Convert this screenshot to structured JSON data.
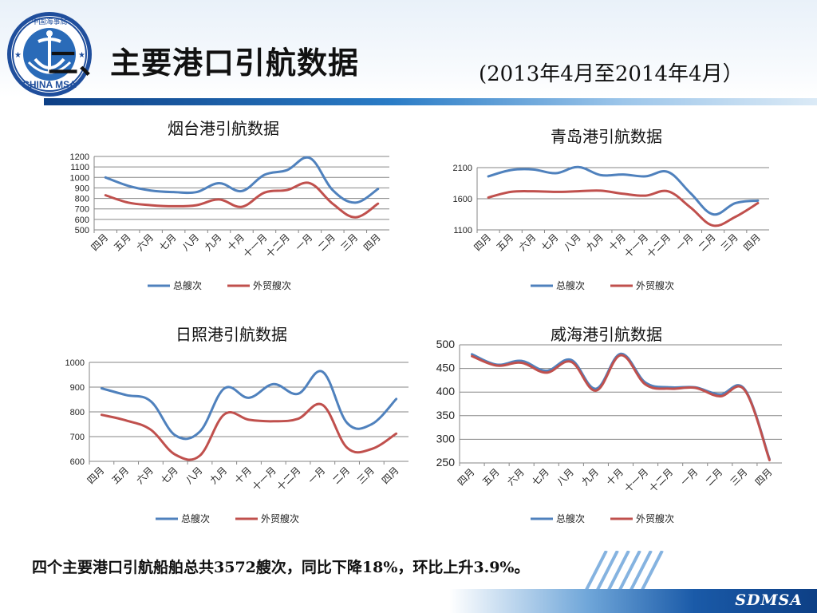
{
  "header": {
    "title": "二、主要港口引航数据",
    "date_range": "(2013年4月至2014年4月）",
    "logo_text": "CHINA MSA",
    "logo_ring_text": "中国海事局"
  },
  "summary": "四个主要港口引航船舶总共3572艘次，同比下降18%，环比上升3.9%。",
  "footer": {
    "brand": "SDMSA"
  },
  "colors": {
    "total": "#4f81bd",
    "foreign": "#c0504d",
    "grid": "#868686",
    "axis": "#868686"
  },
  "chart_data": [
    {
      "type": "line",
      "title": "烟台港引航数据",
      "categories": [
        "四月",
        "五月",
        "六月",
        "七月",
        "八月",
        "九月",
        "十月",
        "十一月",
        "十二月",
        "一月",
        "二月",
        "三月",
        "四月"
      ],
      "ylim": [
        500,
        1200
      ],
      "yticks": [
        500,
        600,
        700,
        800,
        900,
        1000,
        1100,
        1200
      ],
      "series": [
        {
          "name": "总艘次",
          "values": [
            1000,
            920,
            875,
            860,
            860,
            945,
            870,
            1025,
            1070,
            1185,
            880,
            760,
            890
          ]
        },
        {
          "name": "外贸艘次",
          "values": [
            830,
            760,
            735,
            725,
            735,
            790,
            720,
            855,
            880,
            945,
            750,
            620,
            750
          ]
        }
      ],
      "legend": "bottom",
      "grid": true
    },
    {
      "type": "line",
      "title": "青岛港引航数据",
      "categories": [
        "四月",
        "五月",
        "六月",
        "七月",
        "八月",
        "九月",
        "十月",
        "十一月",
        "十二月",
        "一月",
        "二月",
        "三月",
        "四月"
      ],
      "ylim": [
        1100,
        2100
      ],
      "yticks": [
        1100,
        1600,
        2100
      ],
      "series": [
        {
          "name": "总艘次",
          "values": [
            1960,
            2060,
            2070,
            2010,
            2110,
            1980,
            1990,
            1960,
            2030,
            1690,
            1350,
            1530,
            1570
          ]
        },
        {
          "name": "外贸艘次",
          "values": [
            1620,
            1710,
            1720,
            1710,
            1720,
            1730,
            1680,
            1650,
            1720,
            1460,
            1170,
            1310,
            1530
          ]
        }
      ],
      "legend": "bottom",
      "grid": true
    },
    {
      "type": "line",
      "title": "日照港引航数据",
      "categories": [
        "四月",
        "五月",
        "六月",
        "七月",
        "八月",
        "九月",
        "十月",
        "十一月",
        "十二月",
        "一月",
        "二月",
        "三月",
        "四月"
      ],
      "ylim": [
        600,
        1000
      ],
      "yticks": [
        600,
        700,
        800,
        900,
        1000
      ],
      "series": [
        {
          "name": "总艘次",
          "values": [
            895,
            868,
            843,
            705,
            720,
            895,
            857,
            912,
            873,
            962,
            755,
            750,
            852
          ]
        },
        {
          "name": "外贸艘次",
          "values": [
            788,
            765,
            728,
            627,
            623,
            790,
            768,
            762,
            772,
            828,
            655,
            650,
            712
          ]
        }
      ],
      "legend": "bottom",
      "grid": true
    },
    {
      "type": "line",
      "title": "威海港引航数据",
      "categories": [
        "四月",
        "五月",
        "六月",
        "七月",
        "八月",
        "九月",
        "十月",
        "十一月",
        "十二月",
        "一月",
        "二月",
        "三月",
        "四月"
      ],
      "ylim": [
        250,
        500
      ],
      "yticks": [
        250,
        300,
        350,
        400,
        450,
        500
      ],
      "series": [
        {
          "name": "总艘次",
          "values": [
            480,
            458,
            466,
            445,
            468,
            407,
            481,
            420,
            410,
            410,
            395,
            406,
            258
          ]
        },
        {
          "name": "外贸艘次",
          "values": [
            476,
            456,
            462,
            441,
            464,
            403,
            478,
            416,
            407,
            409,
            391,
            404,
            256
          ]
        }
      ],
      "legend": "bottom",
      "grid": true
    }
  ]
}
